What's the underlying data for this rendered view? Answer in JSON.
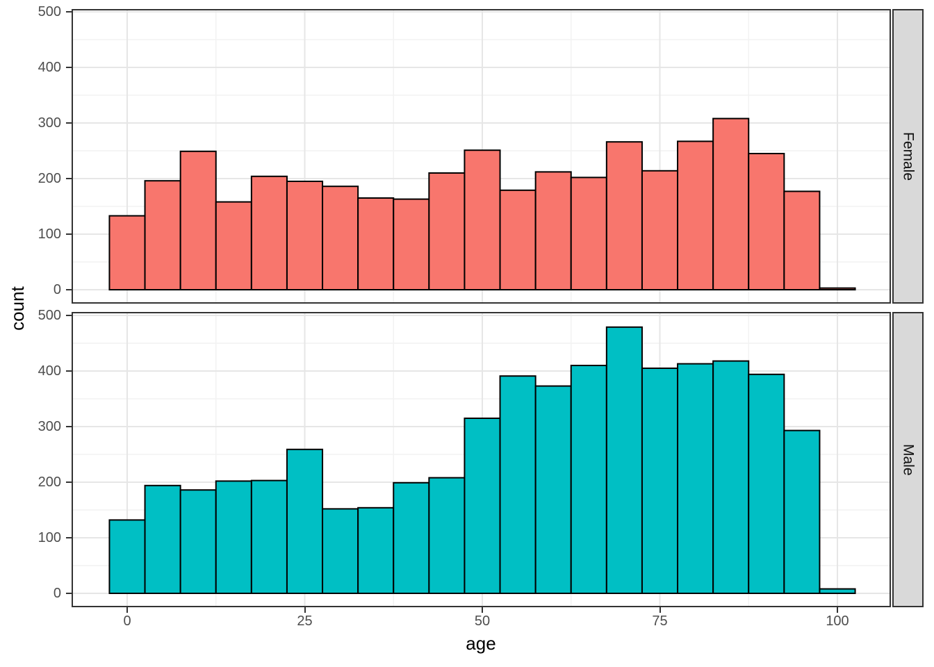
{
  "chart_data": {
    "type": "bar",
    "subtype": "faceted-histogram",
    "title": "",
    "xlabel": "age",
    "ylabel": "count",
    "bin_width": 5,
    "bin_centers": [
      0,
      5,
      10,
      15,
      20,
      25,
      30,
      35,
      40,
      45,
      50,
      55,
      60,
      65,
      70,
      75,
      80,
      85,
      90,
      95,
      100
    ],
    "series": [
      {
        "name": "Female",
        "color": "#F8766D",
        "values": [
          133,
          196,
          249,
          158,
          204,
          195,
          186,
          165,
          163,
          210,
          251,
          179,
          212,
          202,
          266,
          214,
          267,
          308,
          245,
          177,
          3
        ]
      },
      {
        "name": "Male",
        "color": "#00BFC4",
        "values": [
          132,
          194,
          186,
          202,
          203,
          259,
          152,
          154,
          199,
          208,
          315,
          391,
          373,
          410,
          479,
          405,
          413,
          418,
          394,
          293,
          8
        ]
      }
    ],
    "facet_labels": [
      "Female",
      "Male"
    ],
    "facet_strip_position": "right",
    "x_ticks": [
      0,
      25,
      50,
      75,
      100
    ],
    "x_tick_labels": [
      "0",
      "25",
      "50",
      "75",
      "100"
    ],
    "y_ticks": [
      0,
      100,
      200,
      300,
      400,
      500
    ],
    "y_tick_labels": [
      "0",
      "100",
      "200",
      "300",
      "400",
      "500"
    ],
    "xlim": [
      -5,
      105
    ],
    "ylim": [
      0,
      500
    ],
    "grid": "major+minor",
    "legend_position": "none"
  },
  "colors": {
    "female_fill": "#F8766D",
    "male_fill": "#00BFC4",
    "bar_stroke": "#000000",
    "strip_bg": "#D9D9D9",
    "strip_text": "#111111",
    "panel_border": "#333333",
    "panel_bg": "#FFFFFF",
    "grid_major": "#E6E6E6",
    "grid_minor": "#F2F2F2",
    "tick_label": "#4D4D4D",
    "tick_mark": "#333333",
    "axis_title": "#000000"
  }
}
